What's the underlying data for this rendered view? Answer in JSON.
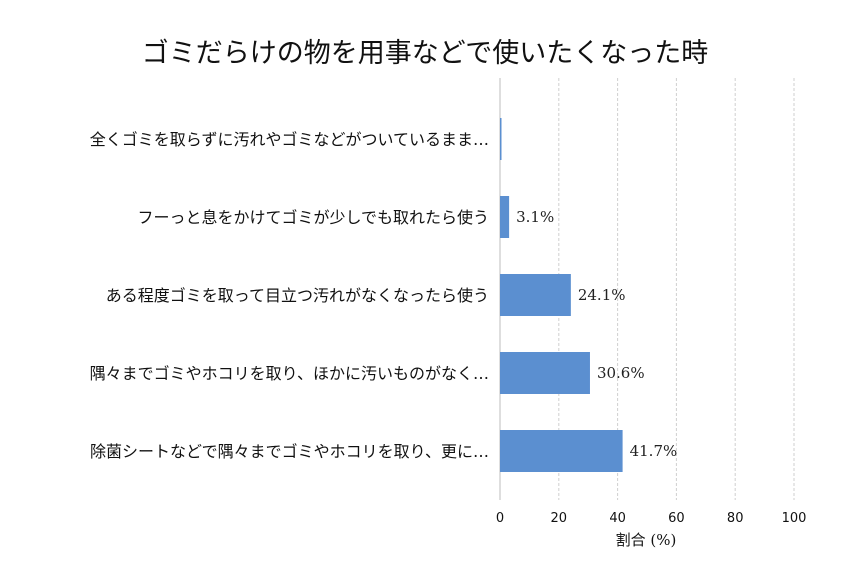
{
  "chart_data": {
    "type": "bar",
    "orientation": "horizontal",
    "title": "ゴミだらけの物を用事などで使いたくなった時",
    "xlabel": "割合 (%)",
    "ylabel": "",
    "xlim": [
      0,
      100
    ],
    "xticks": [
      "0",
      "20",
      "40",
      "60",
      "80",
      "100"
    ],
    "grid": true,
    "bar_color": "#5b8fd0",
    "categories": [
      "全くゴミを取らずに汚れやゴミなどがついているまま…",
      "フーっと息をかけてゴミが少しでも取れたら使う",
      "ある程度ゴミを取って目立つ汚れがなくなったら使う",
      "隅々までゴミやホコリを取り、ほかに汚いものがなく…",
      "除菌シートなどで隅々までゴミやホコリを取り、更に…"
    ],
    "values": [
      0.5,
      3.1,
      24.1,
      30.6,
      41.7
    ],
    "value_labels": [
      "",
      "3.1%",
      "24.1%",
      "30.6%",
      "41.7%"
    ]
  }
}
